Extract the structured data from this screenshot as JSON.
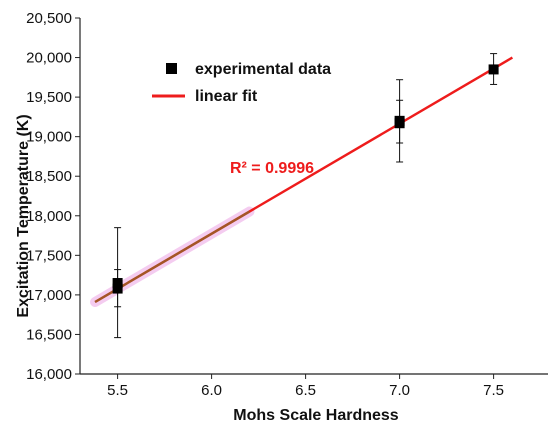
{
  "chart_data": {
    "type": "scatter",
    "title": "",
    "xlabel": "Mohs Scale Hardness",
    "ylabel": "Excitation Temperature (K)",
    "xlim": [
      5.3,
      7.8
    ],
    "ylim": [
      16000,
      20500
    ],
    "x_ticks": [
      5.5,
      6.0,
      6.5,
      7.0,
      7.5
    ],
    "x_tick_labels": [
      "5.5",
      "6.0",
      "6.5",
      "7.0",
      "7.5"
    ],
    "y_ticks": [
      16000,
      16500,
      17000,
      17500,
      18000,
      18500,
      19000,
      19500,
      20000,
      20500
    ],
    "y_tick_labels": [
      "16,000",
      "16,500",
      "17,000",
      "17,500",
      "18,000",
      "18,500",
      "19,000",
      "19,500",
      "20,000",
      "20,500"
    ],
    "grid": false,
    "legend_position": "top-left",
    "series": [
      {
        "name": "experimental data",
        "kind": "scatter",
        "marker": "square",
        "color": "#000000",
        "points": [
          {
            "x": 5.5,
            "y": 17150,
            "err_low": 16850,
            "err_high": 17320
          },
          {
            "x": 5.5,
            "y": 17080,
            "err_low": 16460,
            "err_high": 17850
          },
          {
            "x": 7.0,
            "y": 19200,
            "err_low": 18920,
            "err_high": 19460
          },
          {
            "x": 7.0,
            "y": 19170,
            "err_low": 18680,
            "err_high": 19720
          },
          {
            "x": 7.5,
            "y": 19850,
            "err_low": 19660,
            "err_high": 20050
          }
        ]
      },
      {
        "name": "linear fit",
        "kind": "line",
        "color": "#ee1c1c",
        "x": [
          5.38,
          7.6
        ],
        "y": [
          16910,
          20000
        ]
      }
    ],
    "annotations": [
      {
        "text": "R² = 0.9996",
        "x": 6.35,
        "y": 18700,
        "color": "#ee1c1c"
      }
    ]
  }
}
